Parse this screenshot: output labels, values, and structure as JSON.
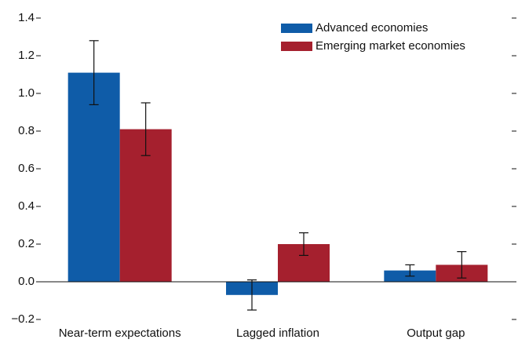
{
  "chart_data": {
    "type": "bar",
    "categories": [
      "Near-term expectations",
      "Lagged inflation",
      "Output gap"
    ],
    "series": [
      {
        "name": "Advanced economies",
        "color": "#0f5ca8",
        "values": [
          1.11,
          -0.07,
          0.06
        ],
        "errors": [
          0.17,
          0.08,
          0.03
        ]
      },
      {
        "name": "Emerging market economies",
        "color": "#a5202e",
        "values": [
          0.81,
          0.2,
          0.09
        ],
        "errors": [
          0.14,
          0.06,
          0.07
        ]
      }
    ],
    "ylim": [
      -0.2,
      1.4
    ],
    "yticks": [
      {
        "value": -0.2,
        "label": "−0.2"
      },
      {
        "value": 0,
        "label": "0.0"
      },
      0.2,
      0.4,
      0.6,
      0.8,
      {
        "value": 1,
        "label": "1.0"
      },
      1.2,
      1.4
    ],
    "legend": "top-right"
  }
}
